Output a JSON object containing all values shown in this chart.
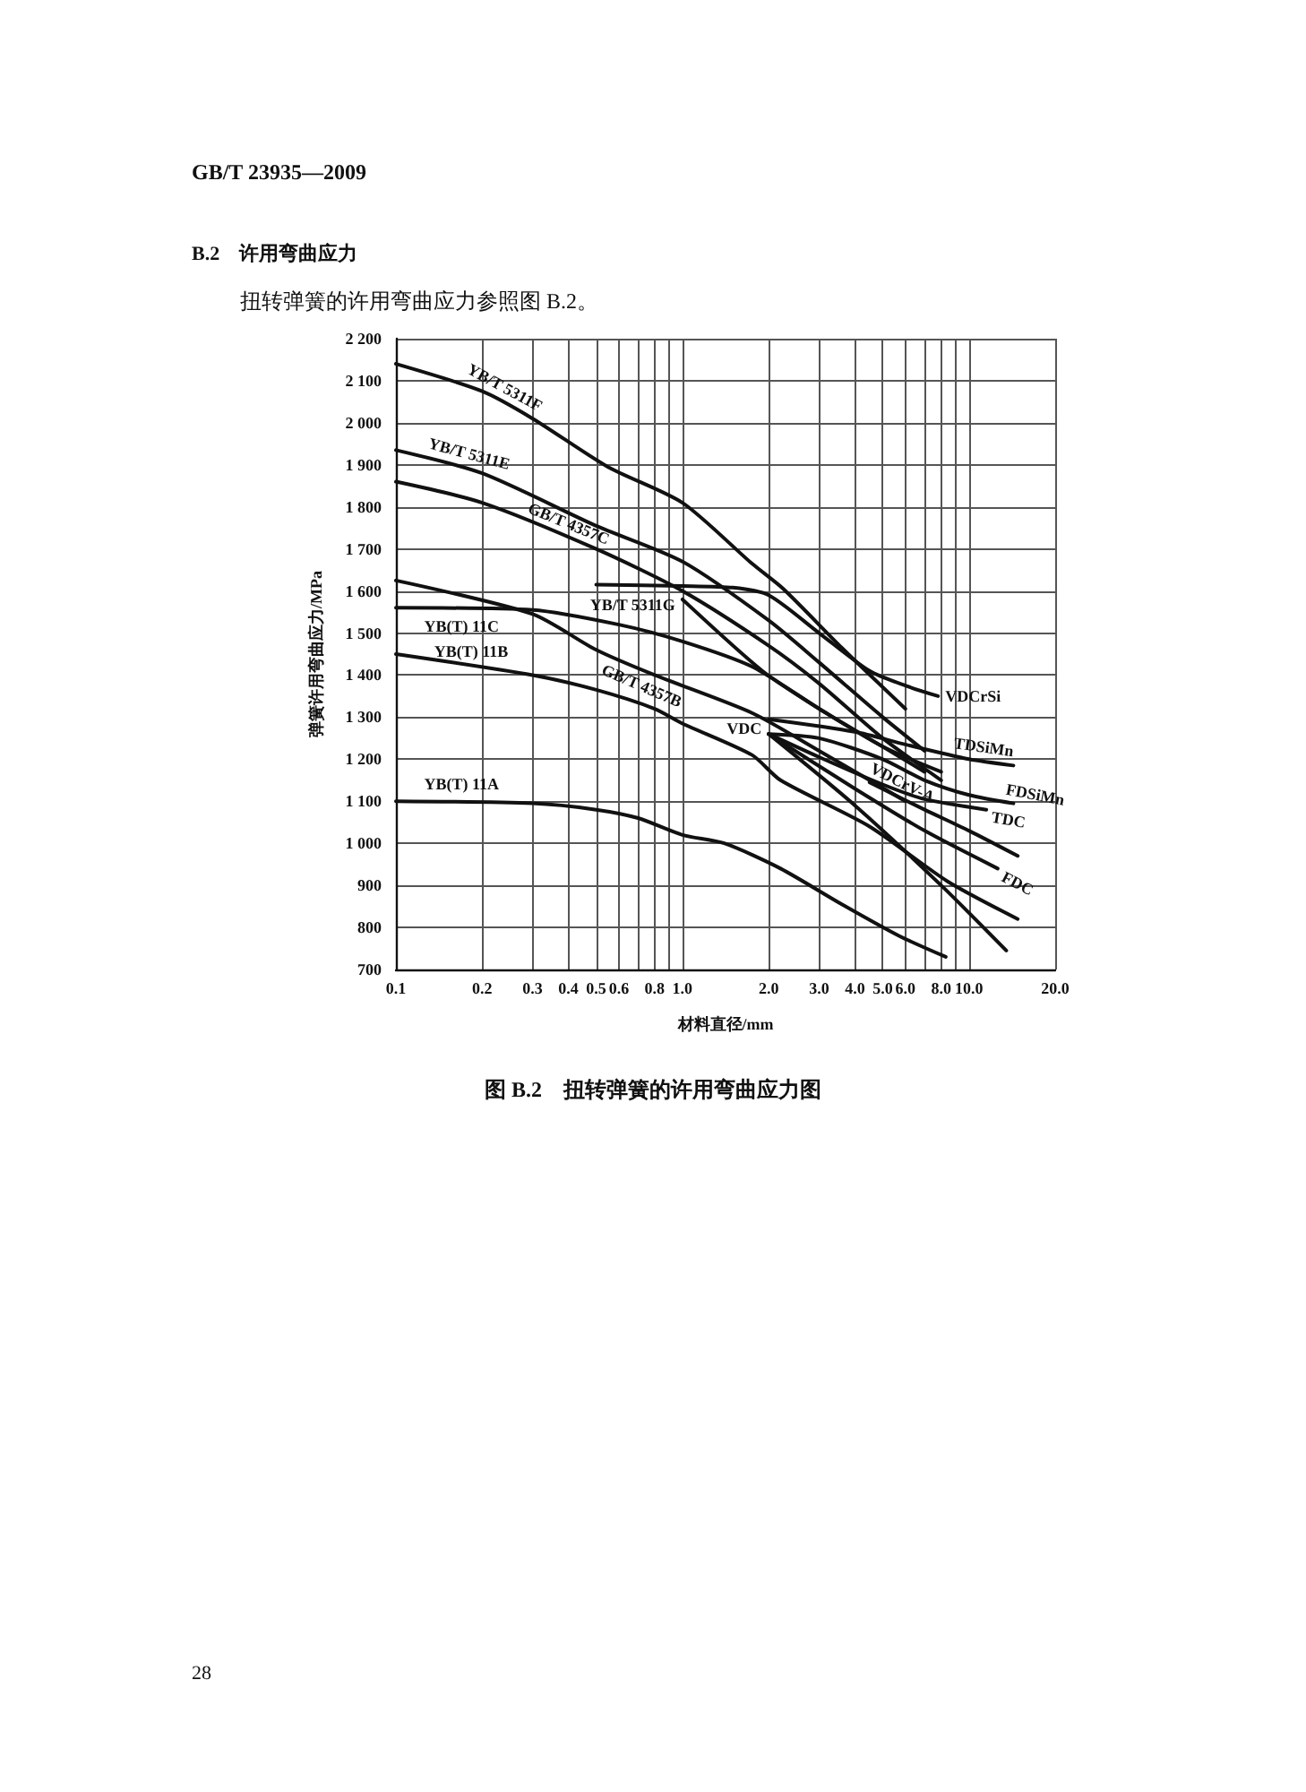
{
  "chart_data": {
    "type": "line",
    "title": "图 B.2　扭转弹簧的许用弯曲应力图",
    "xlabel": "材料直径/mm",
    "ylabel": "弹簧许用弯曲应力/MPa",
    "annotations": [
      "GB/T 23935—2009",
      "B.2　许用弯曲应力",
      "扭转弹簧的许用弯曲应力参照图 B.2。",
      "28"
    ],
    "log": "x",
    "grid": true,
    "marker": "none",
    "line_style": "solid",
    "xlim": [
      0.1,
      20
    ],
    "xticks": [
      0.1,
      0.2,
      0.3,
      0.4,
      0.5,
      0.6,
      {
        "value": 0.7,
        "label": null
      },
      0.8,
      {
        "value": 0.9,
        "label": null
      },
      {
        "value": 1,
        "label": "1.0"
      },
      {
        "value": 2,
        "label": "2.0"
      },
      {
        "value": 3,
        "label": "3.0"
      },
      {
        "value": 4,
        "label": "4.0"
      },
      {
        "value": 5,
        "label": "5.0"
      },
      {
        "value": 6,
        "label": "6.0"
      },
      {
        "value": 7,
        "label": null
      },
      {
        "value": 8,
        "label": "8.0"
      },
      {
        "value": 9,
        "label": null
      },
      {
        "value": 10,
        "label": "10.0"
      },
      {
        "value": 20,
        "label": "20.0"
      }
    ],
    "ylim": [
      700,
      2200
    ],
    "yticks": [
      700,
      800,
      900,
      {
        "value": 1000,
        "label": "1 000"
      },
      {
        "value": 1100,
        "label": "1 100"
      },
      {
        "value": 1200,
        "label": "1 200"
      },
      {
        "value": 1300,
        "label": "1 300"
      },
      {
        "value": 1400,
        "label": "1 400"
      },
      {
        "value": 1500,
        "label": "1 500"
      },
      {
        "value": 1600,
        "label": "1 600"
      },
      {
        "value": 1700,
        "label": "1 700"
      },
      {
        "value": 1800,
        "label": "1 800"
      },
      {
        "value": 1900,
        "label": "1 900"
      },
      {
        "value": 2000,
        "label": "2 000"
      },
      {
        "value": 2100,
        "label": "2 100"
      },
      {
        "value": 2200,
        "label": "2 200"
      }
    ],
    "series": [
      {
        "name": "YB/T 5311F",
        "color": "#111111",
        "x": [
          0.1,
          0.2,
          0.3,
          0.55,
          1.0,
          1.75,
          2.25,
          3.6,
          6.0
        ],
        "values": [
          2140,
          2075,
          2010,
          1895,
          1810,
          1665,
          1605,
          1465,
          1320
        ]
      },
      {
        "name": "YB/T 5311E",
        "color": "#111111",
        "x": [
          0.1,
          0.2,
          0.5,
          1.0,
          2.0,
          3.0,
          5.0,
          7.0
        ],
        "values": [
          1935,
          1880,
          1755,
          1670,
          1530,
          1430,
          1300,
          1220
        ]
      },
      {
        "name": "GB/T 4357C",
        "color": "#111111",
        "x": [
          0.1,
          0.2,
          0.5,
          1.0,
          2.0,
          3.0,
          5.0,
          8.0
        ],
        "values": [
          1860,
          1810,
          1700,
          1600,
          1470,
          1380,
          1250,
          1150
        ]
      },
      {
        "name": "YB(T) 11C",
        "color": "#111111",
        "x": [
          0.1,
          0.3,
          0.6,
          1.0,
          1.75,
          3.0,
          5.0,
          8.0
        ],
        "values": [
          1560,
          1555,
          1520,
          1480,
          1420,
          1320,
          1230,
          1170
        ]
      },
      {
        "name": "YB/T 5311G",
        "color": "#111111",
        "x": [
          1.0,
          1.9,
          3.0,
          5.0,
          7.0
        ],
        "values": [
          1580,
          1410,
          1320,
          1230,
          1170
        ]
      },
      {
        "name": "GB/T 4357B",
        "color": "#111111",
        "x": [
          0.1,
          0.3,
          0.5,
          0.8,
          1.75,
          3.0,
          6.0
        ],
        "values": [
          1625,
          1545,
          1460,
          1400,
          1310,
          1220,
          1100
        ]
      },
      {
        "name": "YB(T) 11B",
        "color": "#111111",
        "x": [
          0.1,
          0.3,
          0.5,
          0.8,
          1.0,
          1.75,
          2.2,
          4.5,
          8.4,
          14.8
        ],
        "values": [
          1450,
          1400,
          1365,
          1320,
          1285,
          1210,
          1150,
          1040,
          910,
          820
        ]
      },
      {
        "name": "YB(T) 11A",
        "color": "#111111",
        "x": [
          0.1,
          0.3,
          0.5,
          0.7,
          1.0,
          1.4,
          2.2,
          3.6,
          5.7,
          8.3
        ],
        "values": [
          1100,
          1095,
          1080,
          1060,
          1020,
          1000,
          940,
          855,
          780,
          730
        ]
      },
      {
        "name": "VDC",
        "color": "#111111",
        "x": [
          2.0,
          4.0,
          8.0,
          13.5
        ],
        "values": [
          1260,
          1090,
          900,
          745
        ]
      },
      {
        "name": "VDCrSi",
        "color": "#111111",
        "x": [
          0.5,
          1.0,
          1.5,
          2.0,
          3.0,
          4.5,
          6.0,
          7.8
        ],
        "values": [
          1615,
          1612,
          1608,
          1590,
          1500,
          1410,
          1375,
          1350
        ]
      },
      {
        "name": "TDSiMn",
        "color": "#111111",
        "x": [
          2.0,
          4.0,
          6.0,
          10.0,
          14.3
        ],
        "values": [
          1295,
          1265,
          1235,
          1200,
          1185
        ]
      },
      {
        "name": "FDSiMn",
        "color": "#111111",
        "x": [
          2.0,
          3.0,
          5.0,
          7.0,
          10.0,
          14.3
        ],
        "values": [
          1260,
          1250,
          1200,
          1150,
          1115,
          1095
        ]
      },
      {
        "name": "TDC",
        "color": "#111111",
        "x": [
          2.0,
          3.0,
          5.0,
          7.0,
          11.5
        ],
        "values": [
          1260,
          1205,
          1140,
          1105,
          1080
        ]
      },
      {
        "name": "FDC",
        "color": "#111111",
        "x": [
          2.0,
          4.0,
          7.0,
          12.6
        ],
        "values": [
          1260,
          1130,
          1030,
          940
        ]
      },
      {
        "name": "VDCrV-A",
        "color": "#111111",
        "x": [
          4.5,
          7.0,
          10.0,
          14.8
        ],
        "values": [
          1145,
          1080,
          1030,
          970
        ]
      }
    ]
  }
}
